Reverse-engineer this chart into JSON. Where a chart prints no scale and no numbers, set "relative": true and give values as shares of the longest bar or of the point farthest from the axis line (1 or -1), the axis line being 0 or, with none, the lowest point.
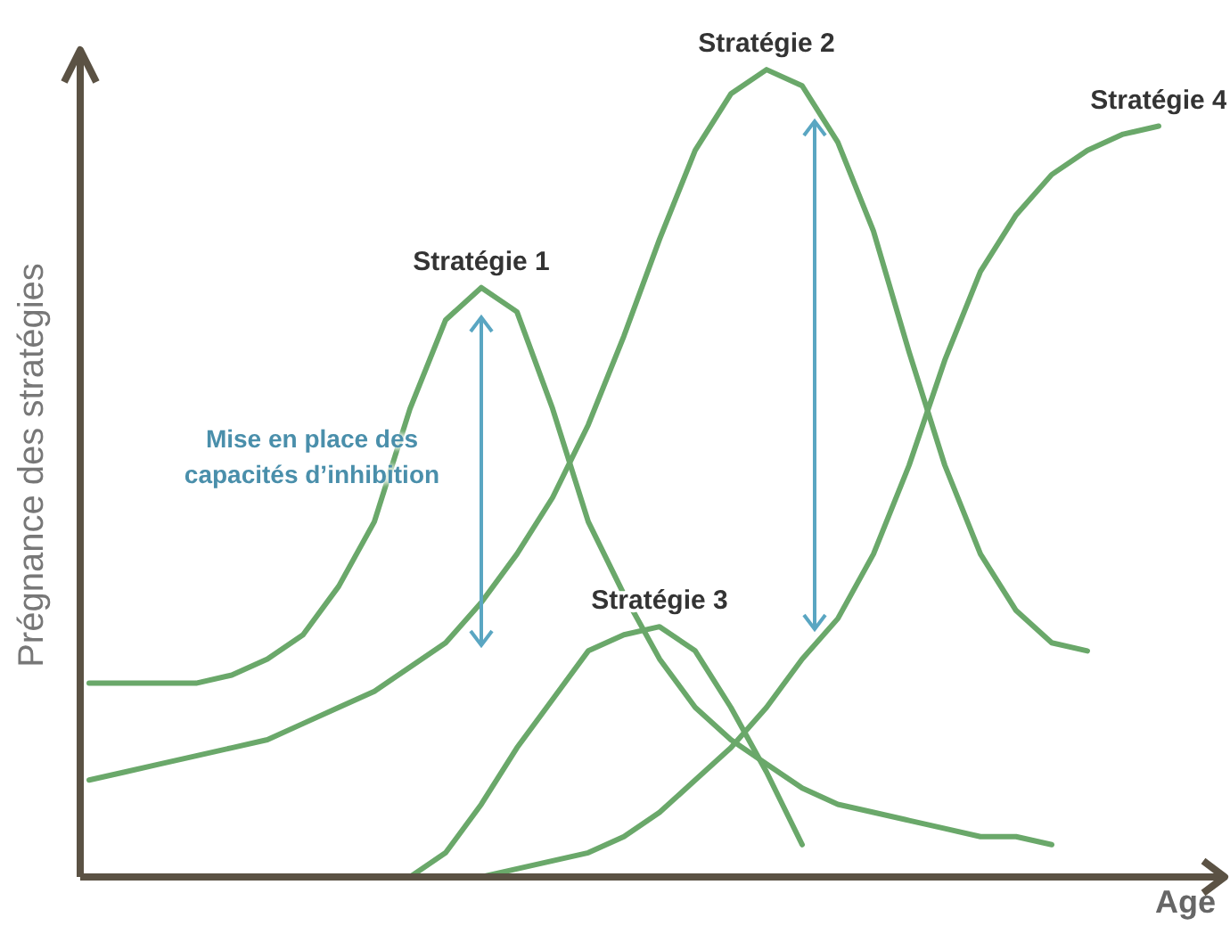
{
  "chart_data": {
    "type": "line",
    "relative": true,
    "xlabel": "Age",
    "ylabel": "Prégnance des stratégies",
    "categories": [
      null,
      null,
      null,
      null,
      null,
      null,
      null,
      null,
      null,
      null,
      null,
      null,
      null,
      null,
      null,
      null,
      null,
      null,
      null,
      null,
      null,
      null,
      null,
      null,
      null,
      null,
      null,
      null,
      null,
      null,
      null
    ],
    "series": [
      {
        "name": "Stratégie 1",
        "color": "#6aa86a",
        "values": [
          0.24,
          0.24,
          0.24,
          0.24,
          0.25,
          0.27,
          0.3,
          0.36,
          0.44,
          0.58,
          0.69,
          0.73,
          0.7,
          0.58,
          0.44,
          0.35,
          0.27,
          0.21,
          0.17,
          0.14,
          0.11,
          0.09,
          0.08,
          0.07,
          0.06,
          0.05,
          0.05,
          0.04,
          null,
          null,
          null
        ]
      },
      {
        "name": "Stratégie 2",
        "color": "#6aa86a",
        "values": [
          0.12,
          0.13,
          0.14,
          0.15,
          0.16,
          0.17,
          0.19,
          0.21,
          0.23,
          0.26,
          0.29,
          0.34,
          0.4,
          0.47,
          0.56,
          0.67,
          0.79,
          0.9,
          0.97,
          1,
          0.98,
          0.91,
          0.8,
          0.65,
          0.51,
          0.4,
          0.33,
          0.29,
          0.28,
          null,
          null
        ]
      },
      {
        "name": "Stratégie 3",
        "color": "#6aa86a",
        "values": [
          null,
          null,
          null,
          null,
          null,
          null,
          null,
          null,
          null,
          0,
          0.03,
          0.09,
          0.16,
          0.22,
          0.28,
          0.3,
          0.31,
          0.28,
          0.21,
          0.13,
          0.04,
          null,
          null,
          null,
          null,
          null,
          null,
          null,
          null,
          null,
          null
        ]
      },
      {
        "name": "Stratégie 4",
        "color": "#6aa86a",
        "values": [
          null,
          null,
          null,
          null,
          null,
          null,
          null,
          null,
          null,
          null,
          null,
          0,
          0.01,
          0.02,
          0.03,
          0.05,
          0.08,
          0.12,
          0.16,
          0.21,
          0.27,
          0.32,
          0.4,
          0.51,
          0.64,
          0.75,
          0.82,
          0.87,
          0.9,
          0.92,
          0.93
        ]
      }
    ],
    "annotations": [
      "Mise en place des capacités d’inhibition"
    ]
  }
}
